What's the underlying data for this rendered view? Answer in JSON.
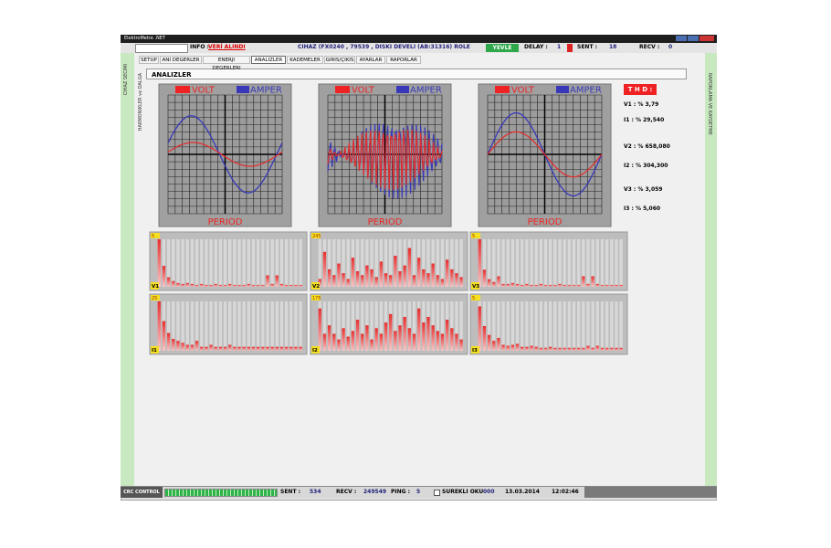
{
  "window": {
    "title": "ElektroMetre .NET"
  },
  "info_bar": {
    "info_label": "INFO :",
    "info_value": "VERİ ALINDI",
    "device": "CIHAZ (FX0240 , 79539 , DISKI DEVELI (AB:31316) ROLE",
    "status": "YEVLE",
    "delay_label": "DELAY :",
    "delay_value": "1",
    "sent_label": "SENT :",
    "sent_value": "18",
    "recv_label": "RECV :",
    "recv_value": "0"
  },
  "side_labels": {
    "left": "CIHAZ SECIMI",
    "left_inner": "HARMONIKLER ve DALGA",
    "right": "RAPORLAMA VE KAYDETME"
  },
  "tabs": [
    "SETUP",
    "ANI DEGERLER",
    "ENERJI DEGERLERI",
    "ANALIZLER",
    "KADEMELER",
    "GIRIS/ÇIKIS",
    "AYARLAR",
    "RAPORLAR"
  ],
  "section_title": "ANALIZLER",
  "scopes": [
    {
      "legend_volt": "VOLT",
      "legend_amper": "AMPER",
      "x_label": "PERIOD"
    },
    {
      "legend_volt": "VOLT",
      "legend_amper": "AMPER",
      "x_label": "PERIOD"
    },
    {
      "legend_volt": "VOLT",
      "legend_amper": "AMPER",
      "x_label": "PERIOD"
    }
  ],
  "thd": {
    "title": "T H D :",
    "rows": [
      "V1 : % 3,79",
      "I1 : % 29,540",
      "V2 : % 658,080",
      "I2 : % 304,300",
      "V3 : % 3,059",
      "I3 : % 5,060"
    ]
  },
  "harmonics": [
    {
      "name": "V1",
      "scale": 5,
      "values": [
        5,
        2.2,
        1,
        0.6,
        0.4,
        0.3,
        0.4,
        0.3,
        0.2,
        0.3,
        0.2,
        0.2,
        0.3,
        0.2,
        0.2,
        0.3,
        0.2,
        0.2,
        0.2,
        0.3,
        0.2,
        0.2,
        0.2,
        1.2,
        0.3,
        1.2,
        0.3,
        0.2,
        0.2,
        0.2,
        0.2
      ]
    },
    {
      "name": "V2",
      "scale": 245,
      "values": [
        40,
        180,
        90,
        60,
        120,
        70,
        40,
        150,
        80,
        60,
        110,
        90,
        50,
        130,
        70,
        60,
        160,
        80,
        110,
        200,
        60,
        150,
        90,
        70,
        120,
        60,
        40,
        140,
        90,
        70,
        50
      ]
    },
    {
      "name": "V3",
      "scale": 5,
      "values": [
        5,
        1.8,
        0.8,
        0.5,
        1.1,
        0.3,
        0.3,
        0.4,
        0.3,
        0.2,
        0.3,
        0.2,
        0.2,
        0.3,
        0.2,
        0.2,
        0.2,
        0.3,
        0.2,
        0.2,
        0.2,
        0.2,
        1.1,
        0.3,
        1.1,
        0.3,
        0.2,
        0.2,
        0.2,
        0.2,
        0.2
      ]
    },
    {
      "name": "I1",
      "scale": 25,
      "values": [
        25,
        15,
        9,
        6,
        5,
        4,
        3,
        3,
        5,
        2,
        2,
        3,
        2,
        2,
        2,
        3,
        2,
        2,
        2,
        2,
        2,
        2,
        2,
        2,
        2,
        2,
        2,
        2,
        2,
        2,
        2
      ]
    },
    {
      "name": "I2",
      "scale": 175,
      "values": [
        150,
        60,
        90,
        60,
        40,
        80,
        50,
        70,
        110,
        60,
        90,
        40,
        80,
        60,
        100,
        130,
        70,
        90,
        120,
        80,
        60,
        150,
        100,
        120,
        90,
        70,
        60,
        110,
        80,
        60,
        40
      ]
    },
    {
      "name": "I3",
      "scale": 5,
      "values": [
        4.5,
        2.5,
        1.6,
        1,
        1.3,
        0.6,
        0.5,
        0.6,
        0.7,
        0.4,
        0.4,
        0.5,
        0.4,
        0.3,
        0.3,
        0.4,
        0.3,
        0.3,
        0.3,
        0.3,
        0.3,
        0.3,
        0.3,
        0.5,
        0.3,
        0.5,
        0.3,
        0.3,
        0.3,
        0.3,
        0.3
      ]
    }
  ],
  "status_bar": {
    "crc": "CRC CONTROL",
    "sent_label": "SENT :",
    "sent_value": "534",
    "recv_label": "RECV :",
    "recv_value": "249549",
    "ping_label": "PING :",
    "ping_value": "5",
    "continuous": "SUREKLI OKU",
    "continuous_value": "000",
    "date": "13.03.2014",
    "time": "12:02:46"
  }
}
